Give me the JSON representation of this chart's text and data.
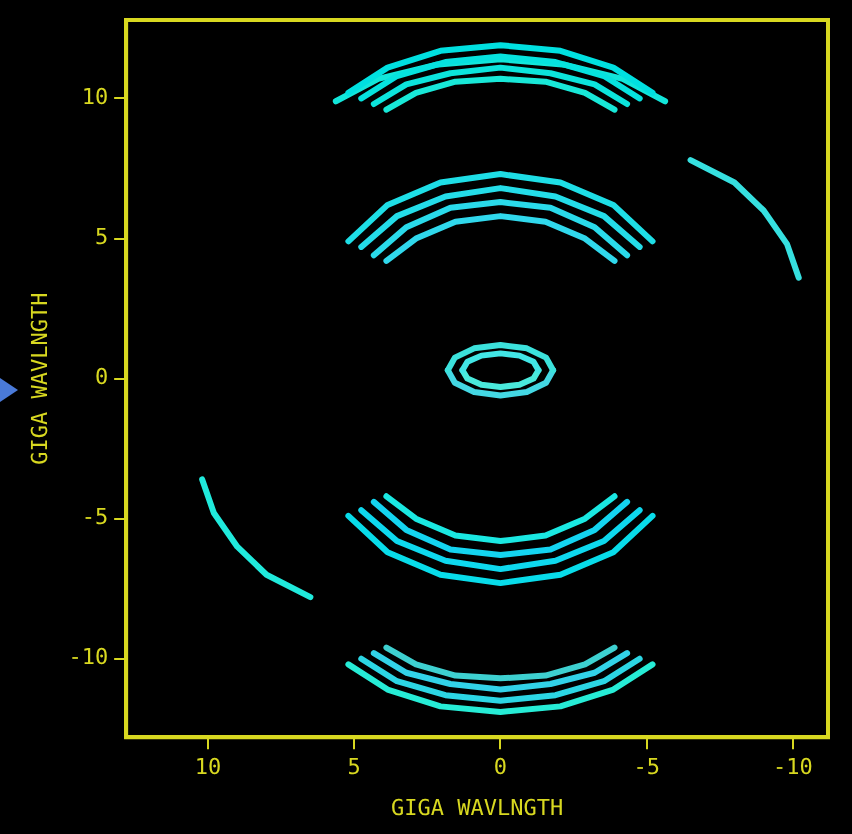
{
  "chart_data": {
    "type": "line",
    "xlabel": "GIGA WAVLNGTH",
    "ylabel": "GIGA WAVLNGTH",
    "xlim": [
      12.8,
      -11.2
    ],
    "ylim": [
      -12.8,
      12.8
    ],
    "xticks": [
      10,
      5,
      0,
      -5,
      -10
    ],
    "yticks": [
      -10,
      -5,
      0,
      5,
      10
    ],
    "grid": false,
    "legend": false,
    "marker": "none",
    "line_style": "solid",
    "series": [
      {
        "color": "#00e0e0",
        "x": [
          5.2,
          3.86,
          2.05,
          0,
          -2.05,
          -3.86,
          -5.2
        ],
        "values": [
          10.2,
          11.1,
          11.7,
          11.9,
          11.7,
          11.1,
          10.2
        ]
      },
      {
        "color": "#06e2de",
        "x": [
          4.76,
          3.54,
          1.88,
          0,
          -1.88,
          -3.54,
          -4.76
        ],
        "values": [
          10,
          10.8,
          11.3,
          11.5,
          11.3,
          10.8,
          10
        ]
      },
      {
        "color": "#0ce4dc",
        "x": [
          4.33,
          3.22,
          1.71,
          0,
          -1.71,
          -3.22,
          -4.33
        ],
        "values": [
          9.8,
          10.5,
          10.9,
          11.1,
          10.9,
          10.5,
          9.8
        ]
      },
      {
        "color": "#12e6da",
        "x": [
          5.63,
          4.18,
          2.22,
          0,
          -2.22,
          -4.18,
          -5.63
        ],
        "values": [
          9.9,
          10.7,
          11.2,
          11.4,
          11.2,
          10.7,
          9.9
        ]
      },
      {
        "color": "#18e8d8",
        "x": [
          3.9,
          2.89,
          1.54,
          0,
          -1.54,
          -2.89,
          -3.9
        ],
        "values": [
          9.6,
          10.2,
          10.6,
          10.7,
          10.6,
          10.2,
          9.6
        ]
      },
      {
        "color": "#1edee6",
        "x": [
          5.2,
          3.86,
          2.05,
          0,
          -2.05,
          -3.86,
          -5.2
        ],
        "values": [
          4.9,
          6.2,
          7,
          7.3,
          7,
          6.2,
          4.9
        ]
      },
      {
        "color": "#24dce8",
        "x": [
          4.76,
          3.54,
          1.88,
          0,
          -1.88,
          -3.54,
          -4.76
        ],
        "values": [
          4.7,
          5.8,
          6.5,
          6.8,
          6.5,
          5.8,
          4.7
        ]
      },
      {
        "color": "#2adaea",
        "x": [
          4.33,
          3.22,
          1.71,
          0,
          -1.71,
          -3.22,
          -4.33
        ],
        "values": [
          4.4,
          5.4,
          6.1,
          6.3,
          6.1,
          5.4,
          4.4
        ]
      },
      {
        "color": "#30d8ec",
        "x": [
          3.9,
          2.89,
          1.54,
          0,
          -1.54,
          -2.89,
          -3.9
        ],
        "values": [
          4.2,
          5,
          5.6,
          5.8,
          5.6,
          5,
          4.2
        ]
      },
      {
        "color": "#36e0e0",
        "x": [
          -6.5,
          -8,
          -9,
          -9.8,
          -10.2
        ],
        "values": [
          7.8,
          7,
          6,
          4.8,
          3.6
        ]
      },
      {
        "color": "#3ce2dc",
        "x": [
          1.8,
          1.56,
          0.9,
          0,
          -0.9,
          -1.56,
          -1.8
        ],
        "values": [
          0.3,
          0.75,
          1.08,
          1.2,
          1.08,
          0.75,
          0.3
        ]
      },
      {
        "color": "#44d8e4",
        "x": [
          1.8,
          1.56,
          0.9,
          0,
          -0.9,
          -1.56,
          -1.8
        ],
        "values": [
          0.3,
          -0.15,
          -0.48,
          -0.6,
          -0.48,
          -0.15,
          0.3
        ]
      },
      {
        "color": "#42e6e6",
        "x": [
          1.3,
          1.13,
          0.65,
          0,
          -0.65,
          -1.13,
          -1.3
        ],
        "values": [
          0.3,
          0.6,
          0.82,
          0.9,
          0.82,
          0.6,
          0.3
        ]
      },
      {
        "color": "#4aeadc",
        "x": [
          1.3,
          1.13,
          0.65,
          0,
          -0.65,
          -1.13,
          -1.3
        ],
        "values": [
          0.3,
          0,
          -0.22,
          -0.3,
          -0.22,
          0,
          0.3
        ]
      },
      {
        "color": "#08dcea",
        "x": [
          5.2,
          3.86,
          2.05,
          0,
          -2.05,
          -3.86,
          -5.2
        ],
        "values": [
          -4.9,
          -6.2,
          -7,
          -7.3,
          -7,
          -6.2,
          -4.9
        ]
      },
      {
        "color": "#0ed8ee",
        "x": [
          4.76,
          3.54,
          1.88,
          0,
          -1.88,
          -3.54,
          -4.76
        ],
        "values": [
          -4.7,
          -5.8,
          -6.5,
          -6.8,
          -6.5,
          -5.8,
          -4.7
        ]
      },
      {
        "color": "#14d4f0",
        "x": [
          4.33,
          3.22,
          1.71,
          0,
          -1.71,
          -3.22,
          -4.33
        ],
        "values": [
          -4.4,
          -5.4,
          -6.1,
          -6.3,
          -6.1,
          -5.4,
          -4.4
        ]
      },
      {
        "color": "#1ae8e2",
        "x": [
          3.9,
          2.89,
          1.54,
          0,
          -1.54,
          -2.89,
          -3.9
        ],
        "values": [
          -4.2,
          -5,
          -5.6,
          -5.8,
          -5.6,
          -5,
          -4.2
        ]
      },
      {
        "color": "#20eadc",
        "x": [
          6.5,
          8,
          9,
          9.8,
          10.2
        ],
        "values": [
          -7.8,
          -7,
          -6,
          -4.8,
          -3.6
        ]
      },
      {
        "color": "#26ecd6",
        "x": [
          5.2,
          3.86,
          2.05,
          0,
          -2.05,
          -3.86,
          -5.2
        ],
        "values": [
          -10.2,
          -11.1,
          -11.7,
          -11.9,
          -11.7,
          -11.1,
          -10.2
        ]
      },
      {
        "color": "#2cd6e4",
        "x": [
          4.76,
          3.54,
          1.88,
          0,
          -1.88,
          -3.54,
          -4.76
        ],
        "values": [
          -10,
          -10.8,
          -11.3,
          -11.5,
          -11.3,
          -10.8,
          -10
        ]
      },
      {
        "color": "#32d2e8",
        "x": [
          4.33,
          3.22,
          1.71,
          0,
          -1.71,
          -3.22,
          -4.33
        ],
        "values": [
          -9.8,
          -10.5,
          -10.9,
          -11.1,
          -10.9,
          -10.5,
          -9.8
        ]
      },
      {
        "color": "#3ed0d0",
        "x": [
          3.9,
          2.89,
          1.54,
          0,
          -1.54,
          -2.89,
          -3.9
        ],
        "values": [
          -9.6,
          -10.2,
          -10.6,
          -10.7,
          -10.6,
          -10.2,
          -9.6
        ]
      }
    ]
  }
}
